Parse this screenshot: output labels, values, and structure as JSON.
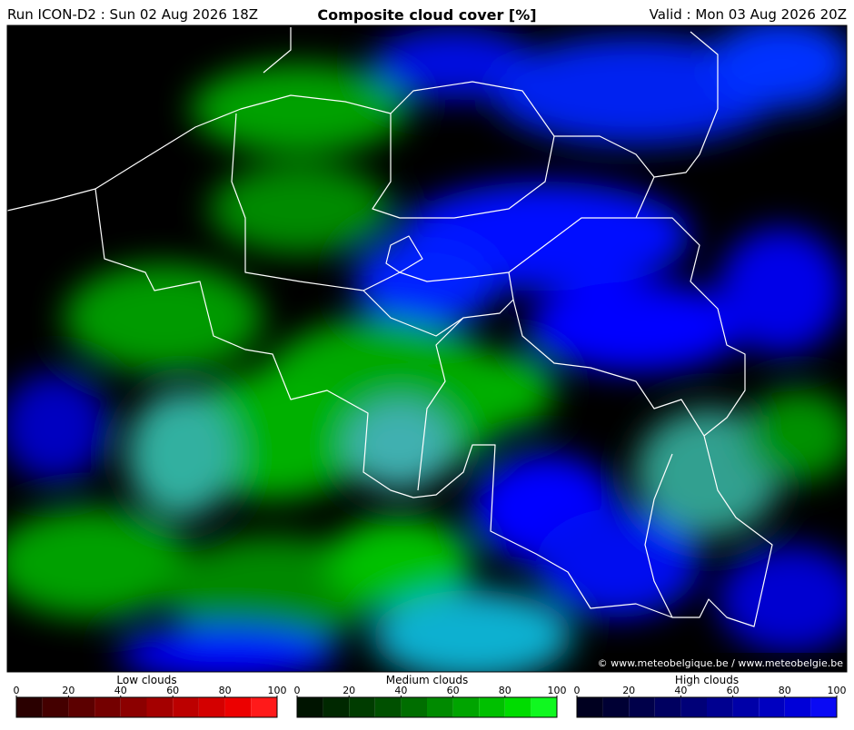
{
  "header": {
    "run": "Run ICON-D2 : Sun 02 Aug 2026 18Z",
    "title": "Composite cloud cover [%]",
    "valid": "Valid : Mon 03 Aug 2026 20Z"
  },
  "map": {
    "credit": "© www.meteobelgique.be / www.meteobelgie.be"
  },
  "legends": [
    {
      "label": "Low clouds",
      "ticks": [
        0,
        20,
        40,
        60,
        80,
        100
      ],
      "colors": [
        "#2a0000",
        "#440000",
        "#5c0000",
        "#740000",
        "#8c0000",
        "#a40000",
        "#bc0000",
        "#d40000",
        "#ec0000",
        "#ff1a1a"
      ]
    },
    {
      "label": "Medium clouds",
      "ticks": [
        0,
        20,
        40,
        60,
        80,
        100
      ],
      "colors": [
        "#001400",
        "#002800",
        "#003c00",
        "#005000",
        "#006e00",
        "#008a00",
        "#00a400",
        "#00c000",
        "#00dc00",
        "#10f820"
      ]
    },
    {
      "label": "High clouds",
      "ticks": [
        0,
        20,
        40,
        60,
        80,
        100
      ],
      "colors": [
        "#000020",
        "#000034",
        "#00004a",
        "#000060",
        "#000078",
        "#000090",
        "#0000a8",
        "#0000c0",
        "#0000d8",
        "#0a0af4"
      ]
    }
  ]
}
